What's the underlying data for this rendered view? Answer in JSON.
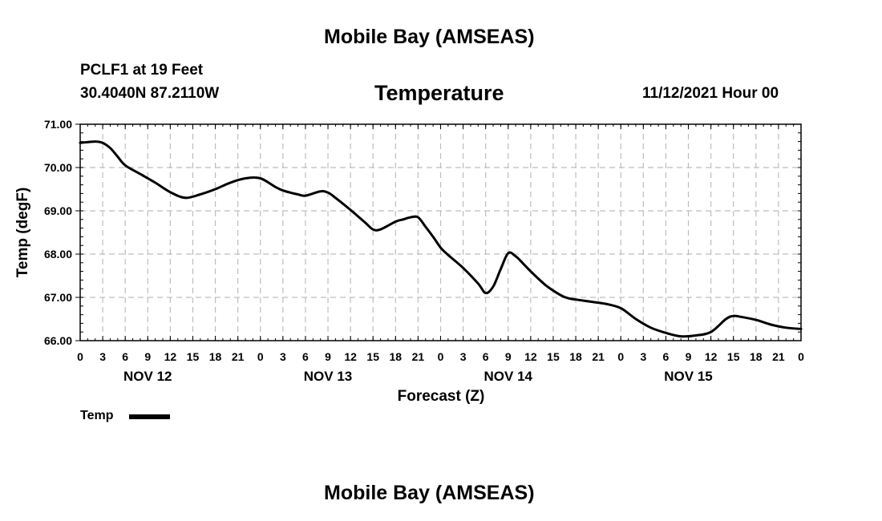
{
  "header": {
    "main_title": "Mobile Bay (AMSEAS)",
    "station": "PCLF1 at 19 Feet",
    "coords": "30.4040N  87.2110W",
    "run_time": "11/12/2021 Hour 00",
    "footer_title": "Mobile Bay (AMSEAS)"
  },
  "chart_data": {
    "type": "line",
    "title": "Temperature",
    "xlabel": "Forecast (Z)",
    "ylabel": "Temp (degF)",
    "ylim": [
      66,
      71
    ],
    "yticks": [
      "66.00",
      "67.00",
      "68.00",
      "69.00",
      "70.00",
      "71.00"
    ],
    "xlim": [
      0,
      96
    ],
    "xticks": [
      "0",
      "3",
      "6",
      "9",
      "12",
      "15",
      "18",
      "21",
      "0",
      "3",
      "6",
      "9",
      "12",
      "15",
      "18",
      "21",
      "0",
      "3",
      "6",
      "9",
      "12",
      "15",
      "18",
      "21",
      "0",
      "3",
      "6",
      "9",
      "12",
      "15",
      "18",
      "21",
      "0"
    ],
    "date_labels": [
      {
        "label": "NOV 12",
        "hour": 9
      },
      {
        "label": "NOV 13",
        "hour": 33
      },
      {
        "label": "NOV 14",
        "hour": 57
      },
      {
        "label": "NOV 15",
        "hour": 81
      }
    ],
    "grid": true,
    "legend": {
      "position": "bottom-left",
      "entries": [
        "Temp"
      ]
    },
    "series": [
      {
        "name": "Temp",
        "color": "#000000",
        "x": [
          0,
          2,
          3,
          4,
          5,
          6,
          8,
          10,
          12,
          14,
          16,
          18,
          20,
          22,
          24,
          26,
          27,
          28,
          29,
          30,
          32,
          33,
          34,
          36,
          38,
          39,
          40,
          42,
          43,
          44,
          45,
          46,
          47,
          48,
          49,
          51,
          53,
          54,
          55,
          56,
          57,
          58,
          59,
          60,
          62,
          64,
          65,
          66,
          68,
          70,
          72,
          74,
          76,
          78,
          80,
          82,
          84,
          86,
          87,
          88,
          90,
          92,
          94,
          96
        ],
        "values": [
          70.57,
          70.6,
          70.57,
          70.45,
          70.25,
          70.05,
          69.85,
          69.65,
          69.43,
          69.3,
          69.38,
          69.5,
          69.65,
          69.75,
          69.75,
          69.55,
          69.47,
          69.42,
          69.38,
          69.35,
          69.45,
          69.42,
          69.3,
          69.02,
          68.72,
          68.57,
          68.57,
          68.75,
          68.8,
          68.85,
          68.85,
          68.63,
          68.4,
          68.15,
          67.98,
          67.68,
          67.32,
          67.1,
          67.25,
          67.65,
          68.02,
          67.95,
          67.78,
          67.6,
          67.28,
          67.05,
          66.98,
          66.95,
          66.9,
          66.85,
          66.75,
          66.5,
          66.3,
          66.18,
          66.1,
          66.12,
          66.2,
          66.5,
          66.57,
          66.55,
          66.48,
          66.37,
          66.3,
          66.27
        ]
      }
    ]
  }
}
